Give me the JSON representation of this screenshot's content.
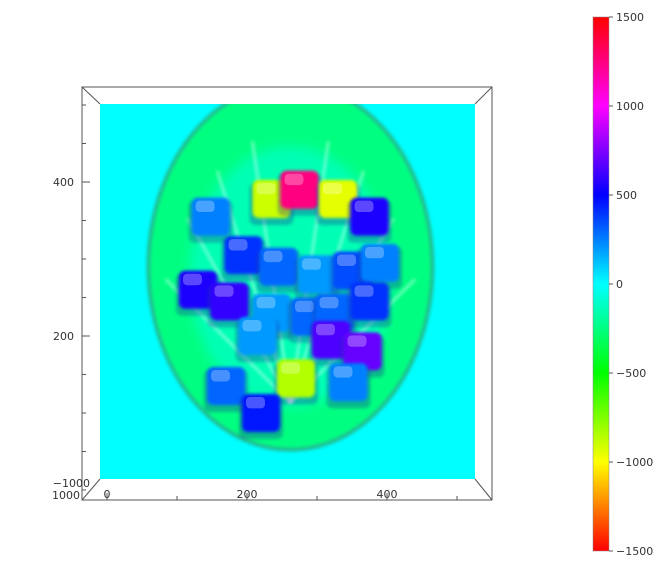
{
  "chart_data": {
    "type": "heatmap",
    "title": "",
    "xlabel": "",
    "ylabel": "",
    "xlim": [
      0,
      500
    ],
    "ylim": [
      0,
      500
    ],
    "zlim": [
      -1000,
      1000
    ],
    "x_ticks": [
      "0",
      "200",
      "400"
    ],
    "y_ticks": [
      "200",
      "400"
    ],
    "x_tick_values": [
      0,
      200,
      400
    ],
    "y_tick_values": [
      200,
      400
    ],
    "corner_labels": [
      "−1000",
      "1000"
    ],
    "colorbar": {
      "min": -1500,
      "max": 1500,
      "ticks": [
        "1500",
        "1000",
        "500",
        "0",
        "−500",
        "−1000",
        "−1500"
      ],
      "tick_values": [
        1500,
        1000,
        500,
        0,
        -500,
        -1000,
        -1500
      ],
      "colormap_stops": [
        "#ff0000",
        "#ff00ff",
        "#0000ff",
        "#00ffff",
        "#00ff00",
        "#ffff00",
        "#ff0000"
      ]
    },
    "background_value": 0,
    "surface": {
      "center": [
        262,
        290
      ],
      "radius_x": 200,
      "radius_y": 235,
      "base_value": -250
    },
    "features": [
      {
        "x": 235,
        "y": 378,
        "value": -900,
        "label": "yellow-left"
      },
      {
        "x": 275,
        "y": 390,
        "value": 1250,
        "label": "magenta-top"
      },
      {
        "x": 330,
        "y": 378,
        "value": -950,
        "label": "yellow-right"
      },
      {
        "x": 148,
        "y": 355,
        "value": 250
      },
      {
        "x": 375,
        "y": 355,
        "value": 550
      },
      {
        "x": 195,
        "y": 305,
        "value": 400
      },
      {
        "x": 245,
        "y": 290,
        "value": 300
      },
      {
        "x": 300,
        "y": 280,
        "value": 200
      },
      {
        "x": 350,
        "y": 285,
        "value": 350
      },
      {
        "x": 390,
        "y": 295,
        "value": 250
      },
      {
        "x": 130,
        "y": 260,
        "value": 550
      },
      {
        "x": 175,
        "y": 245,
        "value": 600
      },
      {
        "x": 235,
        "y": 230,
        "value": 200
      },
      {
        "x": 290,
        "y": 225,
        "value": 300
      },
      {
        "x": 325,
        "y": 230,
        "value": 300
      },
      {
        "x": 375,
        "y": 245,
        "value": 400
      },
      {
        "x": 215,
        "y": 200,
        "value": 200
      },
      {
        "x": 320,
        "y": 195,
        "value": 650
      },
      {
        "x": 365,
        "y": 180,
        "value": 700
      },
      {
        "x": 270,
        "y": 145,
        "value": -850,
        "label": "yellow-bottom"
      },
      {
        "x": 170,
        "y": 135,
        "value": 300
      },
      {
        "x": 220,
        "y": 100,
        "value": 450
      },
      {
        "x": 345,
        "y": 140,
        "value": 250
      }
    ]
  }
}
